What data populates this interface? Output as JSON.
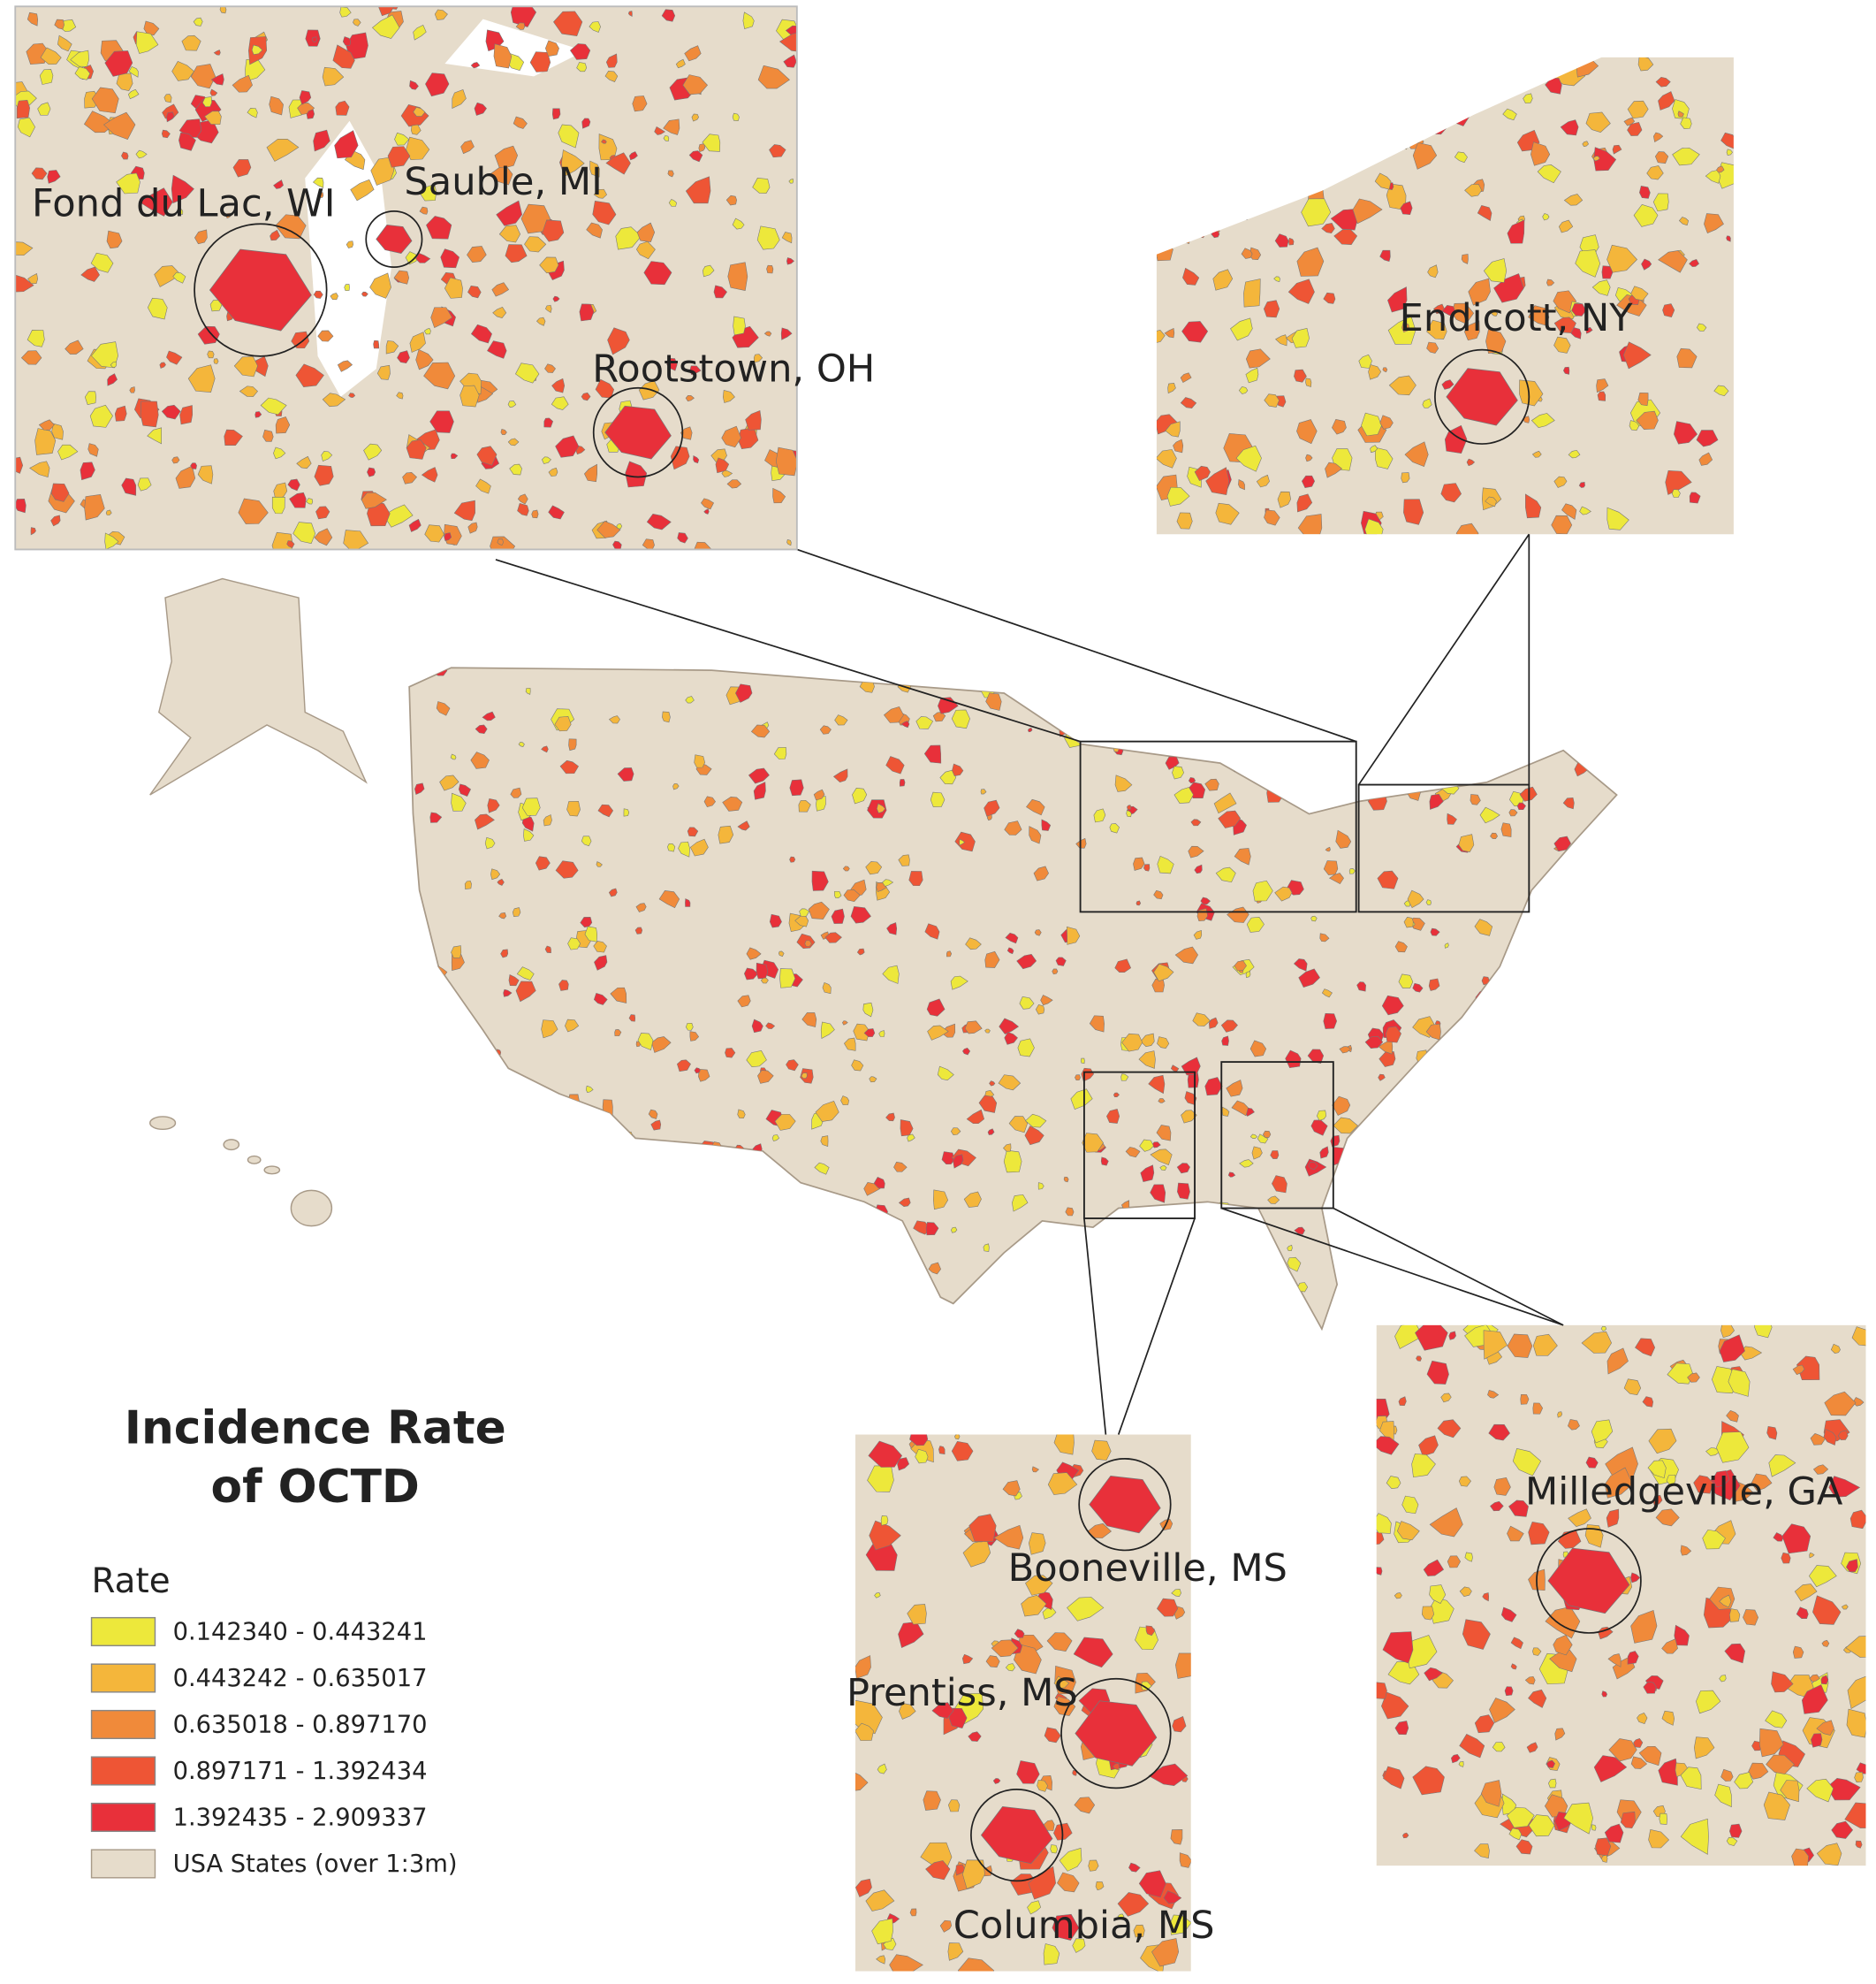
{
  "title": [
    "Incidence Rate",
    "of OCTD"
  ],
  "legend": {
    "title": "Rate",
    "items": [
      {
        "label": "0.142340 - 0.443241",
        "color": "#ede83b"
      },
      {
        "label": "0.443242 - 0.635017",
        "color": "#f4b63b"
      },
      {
        "label": "0.635018 - 0.897170",
        "color": "#f08a3a"
      },
      {
        "label": "0.897171 - 1.392434",
        "color": "#ee5535"
      },
      {
        "label": "1.392435 - 2.909337",
        "color": "#e8303a"
      }
    ],
    "base_layer": {
      "label": "USA States (over 1:3m)",
      "color": "#e6dccb"
    }
  },
  "places": [
    "Fond du Lac, WI",
    "Sauble, MI",
    "Rootstown, OH",
    "Endicott, NY",
    "Booneville, MS",
    "Prentiss, MS",
    "Columbia, MS",
    "Milledgeville, GA"
  ]
}
